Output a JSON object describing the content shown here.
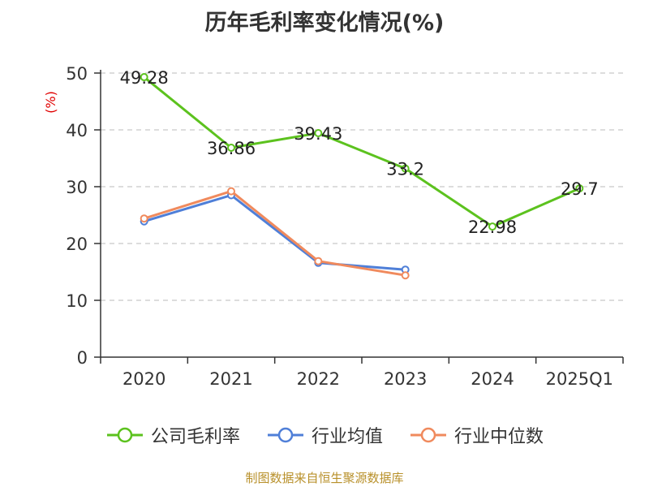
{
  "title": "历年毛利率变化情况(%)",
  "source_note": "制图数据来自恒生聚源数据库",
  "colors": {
    "gross_margin": "#5cc21e",
    "industry_avg": "#4f7fd8",
    "industry_median": "#f08a5d",
    "axis": "#333333",
    "grid": "#bbbbbb",
    "ylabel": "#e00000"
  },
  "chart_data": {
    "type": "line",
    "categories": [
      "2020",
      "2021",
      "2022",
      "2023",
      "2024",
      "2025Q1"
    ],
    "ylabel": "(%)",
    "ylim": [
      0,
      50
    ],
    "yticks": [
      "0",
      "10",
      "20",
      "30",
      "40",
      "50"
    ],
    "grid": "dashed-horizontal",
    "legend_position": "bottom",
    "series": [
      {
        "name": "公司毛利率",
        "colorKey": "gross_margin",
        "values": [
          49.28,
          36.86,
          39.43,
          33.2,
          22.98,
          29.7
        ],
        "labels": [
          "49.28",
          "36.86",
          "39.43",
          "33.2",
          "22.98",
          "29.7"
        ]
      },
      {
        "name": "行业均值",
        "colorKey": "industry_avg",
        "values": [
          23.9,
          28.5,
          16.6,
          15.4,
          null,
          null
        ],
        "labels": []
      },
      {
        "name": "行业中位数",
        "colorKey": "industry_median",
        "values": [
          24.4,
          29.2,
          16.9,
          14.4,
          null,
          null
        ],
        "labels": []
      }
    ]
  }
}
